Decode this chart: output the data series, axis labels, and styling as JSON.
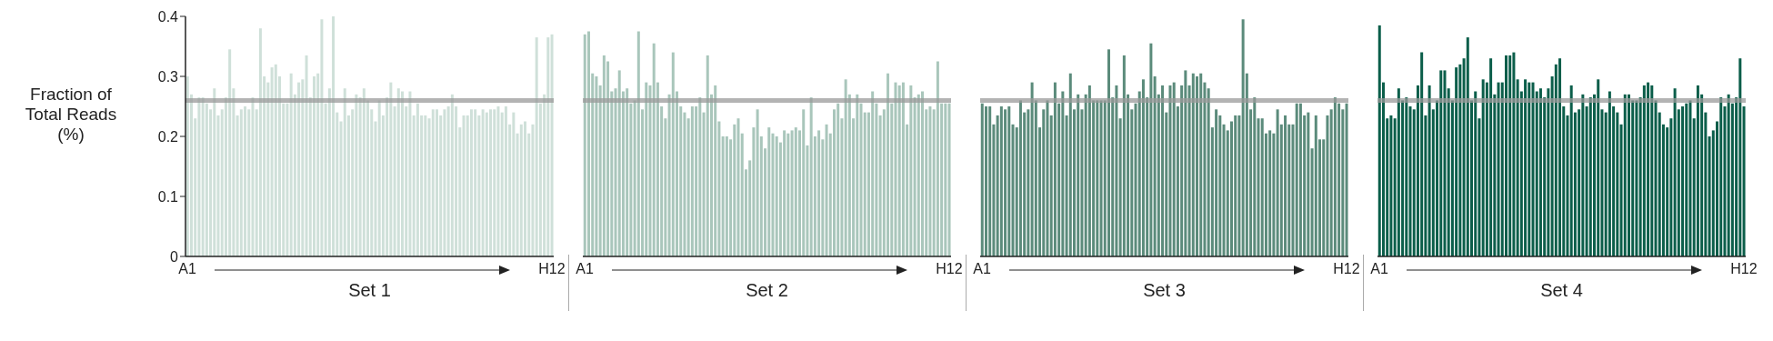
{
  "chart_data": [
    {
      "type": "bar",
      "xlabel": "Set 1",
      "ylabel": "Fraction of Total Reads (%)",
      "color": "#cfe0d9",
      "ylim": [
        0,
        0.4
      ],
      "yticks": [
        0,
        0.1,
        0.2,
        0.3,
        0.4
      ],
      "ref_lines": [
        {
          "axis": "y",
          "value": 0.26,
          "color": "#999999"
        }
      ],
      "categories": [
        "A1",
        null,
        null,
        null,
        null,
        null,
        null,
        null,
        null,
        null,
        null,
        null,
        null,
        null,
        null,
        null,
        null,
        null,
        null,
        null,
        null,
        null,
        null,
        null,
        null,
        null,
        null,
        null,
        null,
        null,
        null,
        null,
        null,
        null,
        null,
        null,
        null,
        null,
        null,
        null,
        null,
        null,
        null,
        null,
        null,
        null,
        null,
        null,
        null,
        null,
        null,
        null,
        null,
        null,
        null,
        null,
        null,
        null,
        null,
        null,
        null,
        null,
        null,
        null,
        null,
        null,
        null,
        null,
        null,
        null,
        null,
        null,
        null,
        null,
        null,
        null,
        null,
        null,
        null,
        null,
        null,
        null,
        null,
        null,
        null,
        null,
        null,
        null,
        null,
        null,
        null,
        null,
        null,
        null,
        null,
        "H12"
      ],
      "values": [
        0.3,
        0.27,
        0.23,
        0.265,
        0.265,
        0.255,
        0.245,
        0.28,
        0.235,
        0.245,
        0.265,
        0.345,
        0.28,
        0.235,
        0.245,
        0.25,
        0.245,
        0.265,
        0.245,
        0.38,
        0.3,
        0.29,
        0.315,
        0.32,
        0.3,
        0.255,
        0.255,
        0.305,
        0.27,
        0.29,
        0.295,
        0.335,
        0.265,
        0.3,
        0.305,
        0.395,
        0.255,
        0.28,
        0.4,
        0.24,
        0.225,
        0.28,
        0.235,
        0.245,
        0.27,
        0.265,
        0.28,
        0.26,
        0.245,
        0.225,
        0.26,
        0.235,
        0.265,
        0.29,
        0.25,
        0.28,
        0.275,
        0.25,
        0.275,
        0.235,
        0.255,
        0.235,
        0.235,
        0.23,
        0.245,
        0.245,
        0.235,
        0.245,
        0.25,
        0.27,
        0.25,
        0.215,
        0.235,
        0.235,
        0.245,
        0.245,
        0.235,
        0.245,
        0.24,
        0.245,
        0.245,
        0.25,
        0.24,
        0.25,
        0.22,
        0.24,
        0.205,
        0.22,
        0.225,
        0.205,
        0.22,
        0.365,
        0.255,
        0.27,
        0.365,
        0.37
      ]
    },
    {
      "type": "bar",
      "xlabel": "Set 2",
      "color": "#a9c6bb",
      "ylim": [
        0,
        0.4
      ],
      "yticks": [
        0,
        0.1,
        0.2,
        0.3,
        0.4
      ],
      "tick_labels": "x",
      "ref_lines": [
        {
          "axis": "y",
          "value": 0.26,
          "color": "#999999"
        }
      ],
      "categories": [
        "A1",
        null,
        null,
        null,
        null,
        null,
        null,
        null,
        null,
        null,
        null,
        null,
        null,
        null,
        null,
        null,
        null,
        null,
        null,
        null,
        null,
        null,
        null,
        null,
        null,
        null,
        null,
        null,
        null,
        null,
        null,
        null,
        null,
        null,
        null,
        null,
        null,
        null,
        null,
        null,
        null,
        null,
        null,
        null,
        null,
        null,
        null,
        null,
        null,
        null,
        null,
        null,
        null,
        null,
        null,
        null,
        null,
        null,
        null,
        null,
        null,
        null,
        null,
        null,
        null,
        null,
        null,
        null,
        null,
        null,
        null,
        null,
        null,
        null,
        null,
        null,
        null,
        null,
        null,
        null,
        null,
        null,
        null,
        null,
        null,
        null,
        null,
        null,
        null,
        null,
        null,
        null,
        null,
        null,
        null,
        "H12"
      ],
      "values": [
        0.37,
        0.375,
        0.305,
        0.3,
        0.285,
        0.335,
        0.325,
        0.275,
        0.28,
        0.31,
        0.275,
        0.28,
        0.255,
        0.26,
        0.375,
        0.245,
        0.29,
        0.285,
        0.355,
        0.29,
        0.25,
        0.23,
        0.27,
        0.34,
        0.275,
        0.25,
        0.24,
        0.23,
        0.25,
        0.25,
        0.265,
        0.24,
        0.335,
        0.27,
        0.285,
        0.225,
        0.2,
        0.2,
        0.195,
        0.22,
        0.23,
        0.205,
        0.145,
        0.16,
        0.215,
        0.245,
        0.2,
        0.18,
        0.215,
        0.205,
        0.2,
        0.19,
        0.21,
        0.205,
        0.21,
        0.215,
        0.21,
        0.245,
        0.185,
        0.265,
        0.2,
        0.21,
        0.195,
        0.22,
        0.205,
        0.245,
        0.255,
        0.23,
        0.295,
        0.27,
        0.23,
        0.27,
        0.255,
        0.24,
        0.24,
        0.275,
        0.255,
        0.235,
        0.245,
        0.305,
        0.255,
        0.29,
        0.285,
        0.29,
        0.22,
        0.285,
        0.265,
        0.27,
        0.275,
        0.245,
        0.25,
        0.245,
        0.325,
        0.255,
        0.255,
        0.255
      ]
    },
    {
      "type": "bar",
      "xlabel": "Set 3",
      "color": "#5b8b7b",
      "ylim": [
        0,
        0.4
      ],
      "yticks": [
        0,
        0.1,
        0.2,
        0.3,
        0.4
      ],
      "tick_labels": "x",
      "ref_lines": [
        {
          "axis": "y",
          "value": 0.26,
          "color": "#999999"
        }
      ],
      "categories": [
        "A1",
        null,
        null,
        null,
        null,
        null,
        null,
        null,
        null,
        null,
        null,
        null,
        null,
        null,
        null,
        null,
        null,
        null,
        null,
        null,
        null,
        null,
        null,
        null,
        null,
        null,
        null,
        null,
        null,
        null,
        null,
        null,
        null,
        null,
        null,
        null,
        null,
        null,
        null,
        null,
        null,
        null,
        null,
        null,
        null,
        null,
        null,
        null,
        null,
        null,
        null,
        null,
        null,
        null,
        null,
        null,
        null,
        null,
        null,
        null,
        null,
        null,
        null,
        null,
        null,
        null,
        null,
        null,
        null,
        null,
        null,
        null,
        null,
        null,
        null,
        null,
        null,
        null,
        null,
        null,
        null,
        null,
        null,
        null,
        null,
        null,
        null,
        null,
        null,
        null,
        null,
        null,
        null,
        null,
        null,
        "H12"
      ],
      "values": [
        0.255,
        0.25,
        0.25,
        0.22,
        0.235,
        0.25,
        0.245,
        0.25,
        0.22,
        0.215,
        0.26,
        0.24,
        0.245,
        0.29,
        0.26,
        0.215,
        0.245,
        0.26,
        0.235,
        0.29,
        0.255,
        0.275,
        0.235,
        0.305,
        0.245,
        0.27,
        0.245,
        0.27,
        0.285,
        0.26,
        0.26,
        0.26,
        0.26,
        0.345,
        0.265,
        0.285,
        0.23,
        0.335,
        0.27,
        0.245,
        0.255,
        0.275,
        0.295,
        0.265,
        0.355,
        0.3,
        0.27,
        0.285,
        0.24,
        0.285,
        0.29,
        0.25,
        0.285,
        0.31,
        0.285,
        0.305,
        0.3,
        0.305,
        0.29,
        0.28,
        0.215,
        0.245,
        0.235,
        0.22,
        0.21,
        0.225,
        0.235,
        0.235,
        0.395,
        0.305,
        0.245,
        0.265,
        0.23,
        0.23,
        0.205,
        0.21,
        0.205,
        0.245,
        0.22,
        0.235,
        0.22,
        0.22,
        0.255,
        0.255,
        0.235,
        0.24,
        0.18,
        0.235,
        0.195,
        0.195,
        0.235,
        0.245,
        0.265,
        0.255,
        0.245,
        0.255
      ]
    },
    {
      "type": "bar",
      "xlabel": "Set 4",
      "color": "#0b5e4a",
      "ylim": [
        0,
        0.4
      ],
      "yticks": [
        0,
        0.1,
        0.2,
        0.3,
        0.4
      ],
      "tick_labels": "x",
      "ref_lines": [
        {
          "axis": "y",
          "value": 0.26,
          "color": "#999999"
        }
      ],
      "categories": [
        "A1",
        null,
        null,
        null,
        null,
        null,
        null,
        null,
        null,
        null,
        null,
        null,
        null,
        null,
        null,
        null,
        null,
        null,
        null,
        null,
        null,
        null,
        null,
        null,
        null,
        null,
        null,
        null,
        null,
        null,
        null,
        null,
        null,
        null,
        null,
        null,
        null,
        null,
        null,
        null,
        null,
        null,
        null,
        null,
        null,
        null,
        null,
        null,
        null,
        null,
        null,
        null,
        null,
        null,
        null,
        null,
        null,
        null,
        null,
        null,
        null,
        null,
        null,
        null,
        null,
        null,
        null,
        null,
        null,
        null,
        null,
        null,
        null,
        null,
        null,
        null,
        null,
        null,
        null,
        null,
        null,
        null,
        null,
        null,
        null,
        null,
        null,
        null,
        null,
        null,
        null,
        null,
        null,
        null,
        null,
        "H12"
      ],
      "values": [
        0.385,
        0.29,
        0.23,
        0.235,
        0.23,
        0.28,
        0.26,
        0.265,
        0.25,
        0.245,
        0.285,
        0.34,
        0.235,
        0.285,
        0.245,
        0.26,
        0.31,
        0.31,
        0.28,
        0.26,
        0.315,
        0.32,
        0.33,
        0.365,
        0.26,
        0.275,
        0.23,
        0.295,
        0.29,
        0.33,
        0.27,
        0.29,
        0.29,
        0.335,
        0.335,
        0.34,
        0.295,
        0.275,
        0.295,
        0.29,
        0.29,
        0.275,
        0.28,
        0.265,
        0.28,
        0.3,
        0.32,
        0.33,
        0.25,
        0.235,
        0.285,
        0.24,
        0.245,
        0.27,
        0.25,
        0.265,
        0.27,
        0.295,
        0.245,
        0.24,
        0.275,
        0.25,
        0.24,
        0.22,
        0.27,
        0.27,
        0.26,
        0.26,
        0.265,
        0.285,
        0.29,
        0.285,
        0.26,
        0.24,
        0.22,
        0.215,
        0.23,
        0.28,
        0.245,
        0.25,
        0.255,
        0.26,
        0.23,
        0.285,
        0.27,
        0.24,
        0.2,
        0.21,
        0.225,
        0.265,
        0.25,
        0.27,
        0.255,
        0.265,
        0.33,
        0.25
      ]
    }
  ]
}
